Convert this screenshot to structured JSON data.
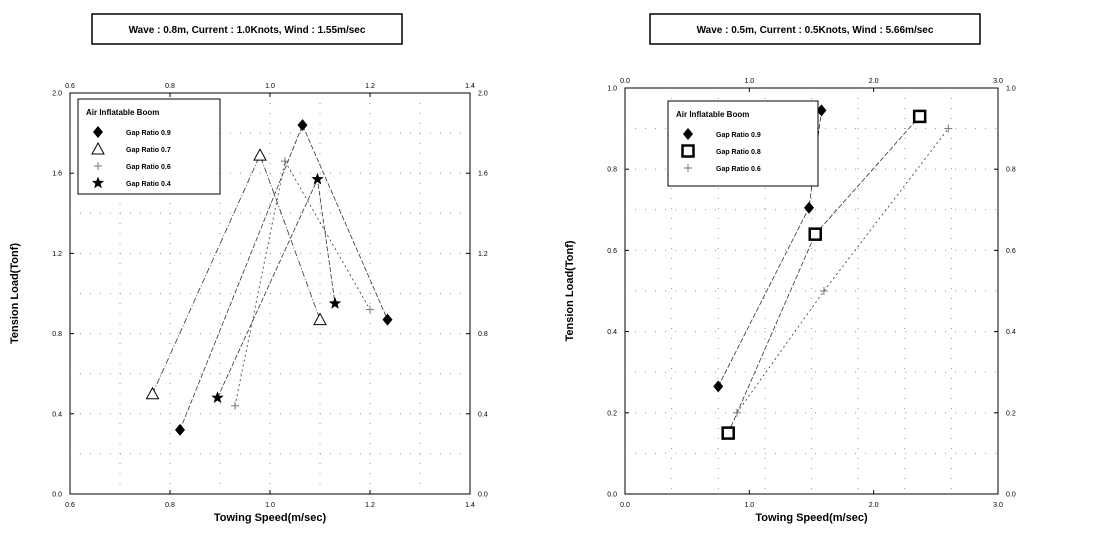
{
  "chart_data": [
    {
      "type": "scatter",
      "title": "Wave : 0.8m,  Current : 1.0Knots,  Wind : 1.55m/sec",
      "xlabel": "Towing Speed(m/sec)",
      "ylabel": "Tension Load(Tonf)",
      "xlim": [
        0.6,
        1.4
      ],
      "ylim": [
        0.0,
        2.0
      ],
      "xticks": [
        "0.6",
        "0.8",
        "1.0",
        "1.2",
        "1.4"
      ],
      "yticks": [
        "0.0",
        "0.4",
        "0.8",
        "1.2",
        "1.6",
        "2.0"
      ],
      "grid": "dotted",
      "legend_title": "Air Inflatable Boom",
      "legend_position": "top-left",
      "series": [
        {
          "name": "Gap Ratio 0.9",
          "marker": "diamond",
          "x": [
            0.82,
            1.065,
            1.235
          ],
          "y": [
            0.32,
            1.84,
            0.87
          ]
        },
        {
          "name": "Gap Ratio 0.7",
          "marker": "triangle",
          "x": [
            0.765,
            0.98,
            1.1
          ],
          "y": [
            0.5,
            1.69,
            0.87
          ]
        },
        {
          "name": "Gap Ratio 0.6",
          "marker": "plus",
          "x": [
            0.93,
            1.03,
            1.2
          ],
          "y": [
            0.44,
            1.66,
            0.92
          ]
        },
        {
          "name": "Gap Ratio 0.4",
          "marker": "star",
          "x": [
            0.895,
            1.095,
            1.13
          ],
          "y": [
            0.48,
            1.57,
            0.95
          ]
        }
      ]
    },
    {
      "type": "scatter",
      "title": "Wave : 0.5m,  Current : 0.5Knots,  Wind : 5.66m/sec",
      "xlabel": "Towing Speed(m/sec)",
      "ylabel": "Tension Load(Tonf)",
      "xlim": [
        0.0,
        3.0
      ],
      "ylim": [
        0.0,
        1.0
      ],
      "xticks": [
        "0.0",
        "1.0",
        "2.0",
        "3.0"
      ],
      "yticks": [
        "0.0",
        "0.2",
        "0.4",
        "0.6",
        "0.8",
        "1.0"
      ],
      "grid": "dotted",
      "legend_title": "Air Inflatable Boom",
      "legend_position": "top-left",
      "series": [
        {
          "name": "Gap Ratio 0.9",
          "marker": "diamond",
          "x": [
            0.75,
            1.48,
            1.58
          ],
          "y": [
            0.265,
            0.705,
            0.945
          ]
        },
        {
          "name": "Gap Ratio 0.8",
          "marker": "square",
          "x": [
            0.83,
            1.53,
            2.37
          ],
          "y": [
            0.15,
            0.64,
            0.93
          ]
        },
        {
          "name": "Gap Ratio 0.6",
          "marker": "plus",
          "x": [
            0.9,
            1.6,
            2.6
          ],
          "y": [
            0.2,
            0.5,
            0.9
          ]
        }
      ]
    }
  ]
}
